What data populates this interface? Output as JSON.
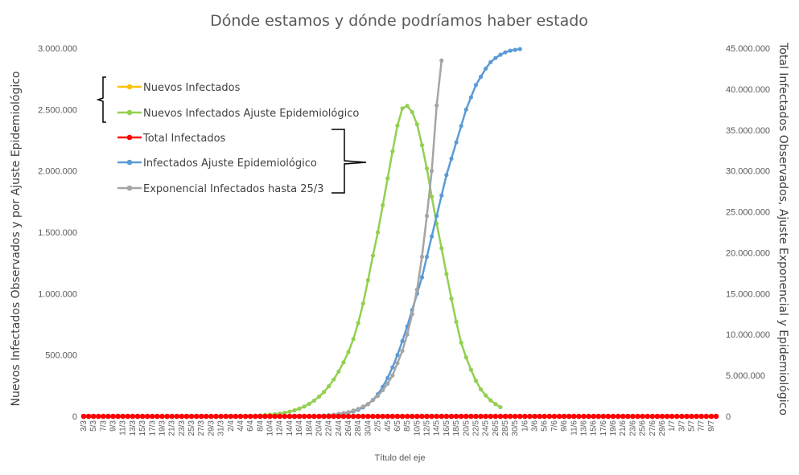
{
  "chart_data": {
    "type": "line",
    "title": "Dónde estamos y dónde podríamos haber estado",
    "xlabel": "Título del eje",
    "ylabel_left": "Nuevos Infectados Observados y por Ajuste Epidemiológico",
    "ylabel_right": "Total Infectados Observados, Ajuste Exponencial y Epidemiológico",
    "ylim_left": [
      0,
      3000000
    ],
    "ylim_right": [
      0,
      45000000
    ],
    "yticks_left": [
      "0",
      "500.000",
      "1.000.000",
      "1.500.000",
      "2.000.000",
      "2.500.000",
      "3.000.000"
    ],
    "yticks_right": [
      "0",
      "5.000.000",
      "10.000.000",
      "15.000.000",
      "20.000.000",
      "25.000.000",
      "30.000.000",
      "35.000.000",
      "40.000.000",
      "45.000.000"
    ],
    "xtick_labels": [
      "3/3",
      "5/3",
      "7/3",
      "9/3",
      "11/3",
      "13/3",
      "15/3",
      "17/3",
      "19/3",
      "21/3",
      "23/3",
      "25/3",
      "27/3",
      "29/3",
      "31/3",
      "2/4",
      "4/4",
      "6/4",
      "8/4",
      "10/4",
      "12/4",
      "14/4",
      "16/4",
      "18/4",
      "20/4",
      "22/4",
      "24/4",
      "26/4",
      "28/4",
      "30/4",
      "2/5",
      "4/5",
      "6/5",
      "8/5",
      "10/5",
      "12/5",
      "14/5",
      "16/5",
      "18/5",
      "20/5",
      "22/5",
      "24/5",
      "26/5",
      "28/5",
      "30/5",
      "1/6",
      "3/6",
      "5/6",
      "7/6",
      "9/6",
      "11/6",
      "13/6",
      "15/6",
      "17/6",
      "19/6",
      "21/6",
      "23/6",
      "25/6",
      "27/6",
      "29/6",
      "1/7",
      "3/7",
      "5/7",
      "7/7",
      "9/7"
    ],
    "grid": false,
    "legend_position": "top-left",
    "series": [
      {
        "name": "Nuevos Infectados",
        "axis": "left",
        "color": "#ffc000",
        "values": [
          0,
          0,
          0,
          0,
          0,
          0,
          0,
          0,
          0,
          0,
          0,
          0,
          0,
          0,
          0,
          0,
          0,
          0,
          0,
          0,
          0,
          0,
          0,
          0,
          0,
          0,
          0,
          0,
          0,
          0,
          0,
          0,
          0,
          0,
          0,
          0,
          0,
          0,
          0,
          0,
          0,
          0,
          0,
          0,
          0,
          0,
          0,
          0,
          0,
          0,
          0,
          0,
          0,
          0,
          0,
          0,
          0,
          0,
          0,
          0,
          0,
          0,
          0,
          0,
          0,
          0,
          0,
          0,
          0,
          0,
          0,
          0,
          0,
          0,
          0,
          0,
          0,
          0,
          0,
          0,
          0,
          0,
          0,
          0,
          0,
          0,
          0,
          0,
          0,
          0,
          0,
          0,
          0,
          0,
          0,
          0,
          0,
          0,
          0,
          0,
          0,
          0,
          0,
          0,
          0,
          0,
          0,
          0,
          0,
          0,
          0,
          0,
          0,
          0,
          0,
          0,
          0,
          0,
          0,
          0,
          0,
          0,
          0,
          0,
          0,
          0,
          0,
          0,
          0,
          0
        ]
      },
      {
        "name": "Nuevos Infectados Ajuste Epidemiológico",
        "axis": "left",
        "color": "#92d050",
        "values": [
          0,
          0,
          0,
          0,
          0,
          0,
          0,
          0,
          0,
          0,
          0,
          0,
          0,
          0,
          0,
          0,
          0,
          0,
          0,
          0,
          0,
          0,
          0,
          0,
          0,
          0,
          0,
          0,
          0,
          0,
          0,
          1000,
          2000,
          3000,
          4000,
          5000,
          7000,
          10000,
          13000,
          17000,
          22000,
          29000,
          38000,
          49000,
          63000,
          80000,
          102000,
          128000,
          160000,
          198000,
          245000,
          300000,
          365000,
          440000,
          525000,
          630000,
          760000,
          920000,
          1110000,
          1310000,
          1500000,
          1720000,
          1940000,
          2160000,
          2370000,
          2510000,
          2530000,
          2480000,
          2380000,
          2210000,
          2020000,
          1790000,
          1570000,
          1370000,
          1160000,
          960000,
          770000,
          600000,
          480000,
          380000,
          290000,
          220000,
          170000,
          130000,
          100000,
          75000
        ]
      },
      {
        "name": "Total Infectados",
        "axis": "right",
        "color": "#ff0000",
        "values": [
          0,
          0,
          0,
          0,
          0,
          0,
          0,
          0,
          0,
          0,
          0,
          0,
          0,
          0,
          0,
          0,
          0,
          0,
          0,
          0,
          0,
          0,
          0,
          0,
          0,
          0,
          0,
          0,
          0,
          0,
          0,
          0,
          0,
          0,
          0,
          0,
          0,
          0,
          0,
          0,
          0,
          0,
          0,
          0,
          0,
          0,
          0,
          0,
          0,
          0,
          0,
          0,
          0,
          0,
          0,
          0,
          0,
          0,
          0,
          0,
          0,
          0,
          0,
          0,
          0,
          0,
          0,
          0,
          0,
          0,
          0,
          0,
          0,
          0,
          0,
          0,
          0,
          0,
          0,
          0,
          0,
          0,
          0,
          0,
          0,
          0,
          0,
          0,
          0,
          0,
          0,
          0,
          0,
          0,
          0,
          0,
          0,
          0,
          0,
          0,
          0,
          0,
          0,
          0,
          0,
          0,
          0,
          0,
          0,
          0,
          0,
          0,
          0,
          0,
          0,
          0,
          0,
          0,
          0,
          0,
          0,
          0,
          0,
          0,
          0,
          0,
          0,
          0,
          0,
          0
        ]
      },
      {
        "name": "Infectados Ajuste Epidemiológico",
        "axis": "right",
        "color": "#5b9bd5",
        "values": [
          0,
          0,
          0,
          0,
          0,
          0,
          0,
          0,
          0,
          0,
          0,
          0,
          0,
          0,
          0,
          0,
          0,
          0,
          0,
          0,
          0,
          0,
          0,
          0,
          0,
          0,
          0,
          0,
          0,
          0,
          0,
          0,
          0,
          0,
          0,
          0,
          0,
          0,
          0,
          0,
          0,
          0,
          0,
          0,
          0,
          0,
          0,
          0,
          0,
          0,
          0,
          100000,
          200000,
          300000,
          450000,
          600000,
          800000,
          1100000,
          1500000,
          2000000,
          2700000,
          3600000,
          4700000,
          6000000,
          7500000,
          9200000,
          11000000,
          13000000,
          15000000,
          17000000,
          19500000,
          22000000,
          24500000,
          27000000,
          29500000,
          31500000,
          33500000,
          35500000,
          37500000,
          39000000,
          40500000,
          41500000,
          42500000,
          43300000,
          43800000,
          44200000,
          44500000,
          44700000,
          44800000,
          44900000
        ]
      },
      {
        "name": "Exponencial Infectados hasta 25/3",
        "axis": "right",
        "color": "#a5a5a5",
        "values": [
          0,
          0,
          0,
          0,
          0,
          0,
          0,
          0,
          0,
          0,
          0,
          0,
          0,
          0,
          0,
          0,
          0,
          0,
          0,
          0,
          0,
          0,
          0,
          0,
          0,
          0,
          0,
          0,
          0,
          0,
          0,
          0,
          0,
          0,
          0,
          0,
          0,
          0,
          0,
          0,
          0,
          0,
          0,
          0,
          0,
          0,
          0,
          0,
          50000,
          100000,
          150000,
          200000,
          300000,
          400000,
          500000,
          700000,
          900000,
          1200000,
          1500000,
          2000000,
          2500000,
          3200000,
          4000000,
          5000000,
          6500000,
          8000000,
          10000000,
          12500000,
          15500000,
          19500000,
          24500000,
          30000000,
          38000000,
          43500000
        ]
      }
    ]
  }
}
